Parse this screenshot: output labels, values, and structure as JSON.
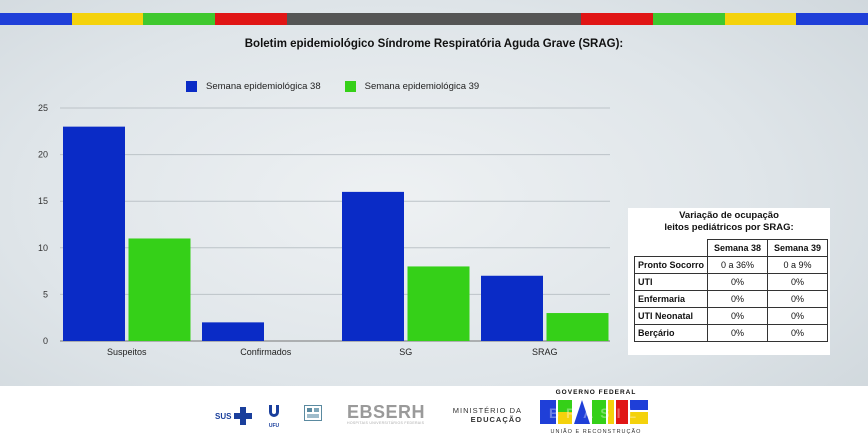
{
  "stripe_colors": [
    "#1f3fd8",
    "#f4d20c",
    "#3fc82e",
    "#e01515",
    "#555555",
    "#e01515",
    "#3fc82e",
    "#f4d20c",
    "#1f3fd8"
  ],
  "chart_data": {
    "type": "bar",
    "title": "Boletim epidemiológico Síndrome Respiratória Aguda Grave (SRAG):",
    "categories": [
      "Suspeitos",
      "Confirmados",
      "SG",
      "SRAG"
    ],
    "series": [
      {
        "name": "Semana epidemiológica 38",
        "color": "#0a2bc6",
        "values": [
          23,
          2,
          16,
          7
        ]
      },
      {
        "name": "Semana epidemiológica 39",
        "color": "#35d018",
        "values": [
          11,
          0,
          8,
          3
        ]
      }
    ],
    "ylim": [
      0,
      25
    ],
    "yticks": [
      0,
      5,
      10,
      15,
      20,
      25
    ],
    "grid": true,
    "legend": "top"
  },
  "table": {
    "title_line1": "Variação de ocupação",
    "title_line2": "leitos pediátricos por SRAG:",
    "headers": [
      "Semana 38",
      "Semana 39"
    ],
    "rows": [
      {
        "label": "Pronto Socorro",
        "w38": "0 a 36%",
        "w39": "0 a 9%"
      },
      {
        "label": "UTI",
        "w38": "0%",
        "w39": "0%"
      },
      {
        "label": "Enfermaria",
        "w38": "0%",
        "w39": "0%"
      },
      {
        "label": "UTI Neonatal",
        "w38": "0%",
        "w39": "0%"
      },
      {
        "label": "Berçário",
        "w38": "0%",
        "w39": "0%"
      }
    ]
  },
  "footer": {
    "sus": "SUS",
    "ufu": "UFU",
    "ebserh": "EBSERH",
    "ebserh_sub": "HOSPITAIS UNIVERSITÁRIOS FEDERAIS",
    "ministerio_line1": "MINISTÉRIO DA",
    "ministerio_line2": "EDUCAÇÃO",
    "gov_line1": "GOVERNO FEDERAL",
    "gov_brasil": "BRASIL",
    "gov_line2": "UNIÃO E RECONSTRUÇÃO"
  }
}
